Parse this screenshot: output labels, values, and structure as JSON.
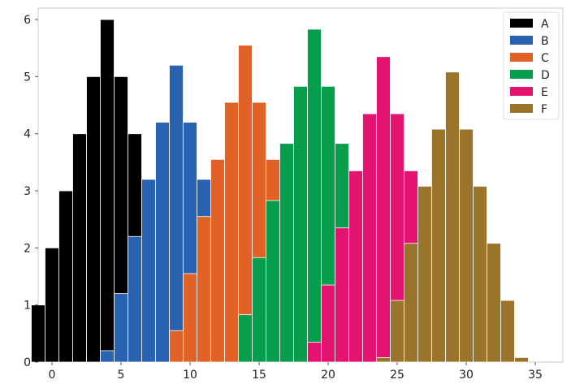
{
  "chart_data": {
    "type": "histogram",
    "bin_width": 1,
    "xlim": [
      -1,
      37
    ],
    "ylim": [
      0,
      6.2
    ],
    "x_ticks": [
      0,
      5,
      10,
      15,
      20,
      25,
      30,
      35
    ],
    "y_ticks": [
      0,
      1,
      2,
      3,
      4,
      5,
      6
    ],
    "grid": false,
    "legend": "top-right",
    "series": [
      {
        "name": "A",
        "color": "#000000",
        "bins": [
          -1,
          0,
          1,
          2,
          3,
          4,
          5,
          6,
          7,
          8
        ],
        "counts": [
          1,
          2,
          3,
          4,
          5,
          6,
          5,
          4,
          3,
          2
        ]
      },
      {
        "name": "B",
        "color": "#2962b0",
        "bins": [
          4,
          5,
          6,
          7,
          8,
          9,
          10,
          11,
          12,
          13
        ],
        "counts": [
          0.2,
          1.2,
          2.2,
          3.2,
          4.2,
          5.2,
          4.2,
          3.2,
          2.2,
          1.2
        ]
      },
      {
        "name": "C",
        "color": "#e06226",
        "bins": [
          9,
          10,
          11,
          12,
          13,
          14,
          15,
          16,
          17,
          18
        ],
        "counts": [
          0.55,
          1.55,
          2.55,
          3.55,
          4.55,
          5.55,
          4.55,
          3.55,
          2.55,
          1.55
        ]
      },
      {
        "name": "D",
        "color": "#069e4d",
        "bins": [
          14,
          15,
          16,
          17,
          18,
          19,
          20,
          21,
          22,
          23
        ],
        "counts": [
          0.83,
          1.83,
          2.83,
          3.83,
          4.83,
          5.83,
          4.83,
          3.83,
          2.83,
          1.83
        ]
      },
      {
        "name": "E",
        "color": "#e3136f",
        "bins": [
          19,
          20,
          21,
          22,
          23,
          24,
          25,
          26,
          27,
          28
        ],
        "counts": [
          0.35,
          1.35,
          2.35,
          3.35,
          4.35,
          5.35,
          4.35,
          3.35,
          2.35,
          1.35
        ]
      },
      {
        "name": "F",
        "color": "#9b742c",
        "bins": [
          24,
          25,
          26,
          27,
          28,
          29,
          30,
          31,
          32,
          33,
          34,
          35
        ],
        "counts": [
          0.08,
          1.08,
          2.08,
          3.08,
          4.08,
          5.08,
          4.08,
          3.08,
          2.08,
          1.08,
          0.08
        ]
      }
    ]
  }
}
